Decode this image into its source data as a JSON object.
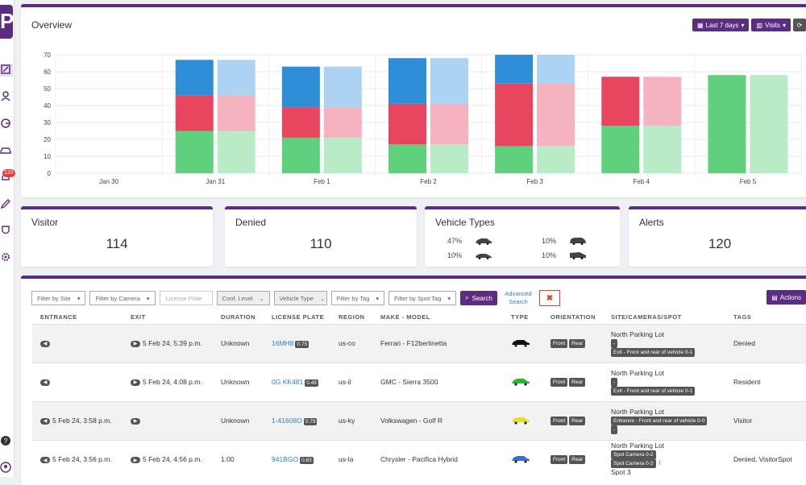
{
  "app": {
    "logo_letter": "P"
  },
  "sidebar": {
    "icons": [
      "dashboard-icon",
      "people-icon",
      "analytics-icon",
      "car-icon",
      "alerts-icon",
      "edit-icon",
      "shield-icon",
      "settings-icon",
      "help-icon",
      "account-icon"
    ],
    "notification_count": "120"
  },
  "overview": {
    "title": "Overview",
    "date_range_label": "Last 7 days",
    "metric_label": "Visits",
    "colors": {
      "blue": "#2e8fd8",
      "red": "#e8455e",
      "green": "#5fd17d",
      "blue_light": "#add3f2",
      "red_light": "#f5b3bf",
      "green_light": "#b9ebc6"
    }
  },
  "chart_data": {
    "type": "bar",
    "stacked": true,
    "categories": [
      "Jan 30",
      "Jan 31",
      "Feb 1",
      "Feb 2",
      "Feb 3",
      "Feb 4",
      "Feb 5"
    ],
    "ylim": [
      0,
      70
    ],
    "yticks": [
      0,
      10,
      20,
      30,
      40,
      50,
      60,
      70
    ],
    "grid": true,
    "paired_bars": true,
    "series": [
      {
        "values": [
          0,
          25,
          21,
          17,
          16,
          28,
          58
        ]
      },
      {
        "values": [
          0,
          21,
          18,
          24,
          37,
          29,
          0
        ]
      },
      {
        "values": [
          0,
          21,
          24,
          27,
          17,
          0,
          0
        ]
      }
    ]
  },
  "stats": {
    "visitor": {
      "label": "Visitor",
      "value": "114"
    },
    "denied": {
      "label": "Denied",
      "value": "110"
    },
    "vehicle_types": {
      "label": "Vehicle Types",
      "items": [
        {
          "pct": "47%",
          "icon": "sedan-icon"
        },
        {
          "pct": "10%",
          "icon": "suv-icon"
        },
        {
          "pct": "10%",
          "icon": "coupe-icon"
        },
        {
          "pct": "10%",
          "icon": "van-icon"
        }
      ]
    },
    "alerts": {
      "label": "Alerts",
      "value": "120"
    }
  },
  "filters": {
    "site": "Filter by Site",
    "camera": "Filter by Camera",
    "plate_placeholder": "License Plate",
    "conf": "Conf. Level",
    "vehicle_type": "Vehicle Type",
    "tag": "Filter by Tag",
    "spot_tag": "Filter by Spot Tag",
    "search": "Search",
    "advanced_1": "Advanced",
    "advanced_2": "Search",
    "actions": "Actions"
  },
  "table": {
    "headers": [
      "ENTRANCE",
      "EXIT",
      "DURATION",
      "LICENSE PLATE",
      "REGION",
      "MAKE - MODEL",
      "TYPE",
      "ORIENTATION",
      "SITE/CAMERAS/SPOT",
      "TAGS"
    ],
    "rows": [
      {
        "entrance": "",
        "exit": "5 Feb 24, 5:39 p.m.",
        "duration": "Unknown",
        "plate": "16MH8",
        "conf": "0.75",
        "region": "us-co",
        "make": "Ferrari - F12berlinetta",
        "type_color": "#111111",
        "orient": [
          "Front",
          "Rear"
        ],
        "site": "North Parking Lot",
        "site_tags": [
          "-",
          "Exit - Front and rear of vehicle 0-1"
        ],
        "tags": "Denied"
      },
      {
        "entrance": "",
        "exit": "5 Feb 24, 4:08 p.m.",
        "duration": "Unknown",
        "plate": "0G KK481",
        "conf": "0.49",
        "region": "us-il",
        "make": "GMC - Sierra 3500",
        "type_color": "#2fb52f",
        "orient": [
          "Front",
          "Rear"
        ],
        "site": "North Parking Lot",
        "site_tags": [
          "-",
          "Exit - Front and rear of vehicle 0-1"
        ],
        "tags": "Resident"
      },
      {
        "entrance": "5 Feb 24, 3:58 p.m.",
        "exit": "",
        "duration": "Unknown",
        "plate": "1-41608O",
        "conf": "0.79",
        "region": "us-ky",
        "make": "Volkswagen - Golf R",
        "type_color": "#e8e020",
        "orient": [
          "Front",
          "Rear"
        ],
        "site": "North Parking Lot",
        "site_tags": [
          "Entrance - Front and rear of vehicle 0-0",
          "-"
        ],
        "tags": "Visitor"
      },
      {
        "entrance": "5 Feb 24, 3:56 p.m.",
        "exit": "5 Feb 24, 4:56 p.m.",
        "duration": "1:00",
        "plate": "941BGO",
        "conf": "0.83",
        "region": "us-la",
        "make": "Chrysler - Pacifica Hybrid",
        "type_color": "#3a6fd0",
        "orient": [
          "Front",
          "Rear"
        ],
        "site": "North Parking Lot",
        "site_tags": [
          "Spot Camera 0-2",
          "Spot Camera 0-2"
        ],
        "site_spot": "Spot 3",
        "site_slash": "/",
        "tags": "Denied, VisitorSpot"
      }
    ]
  }
}
